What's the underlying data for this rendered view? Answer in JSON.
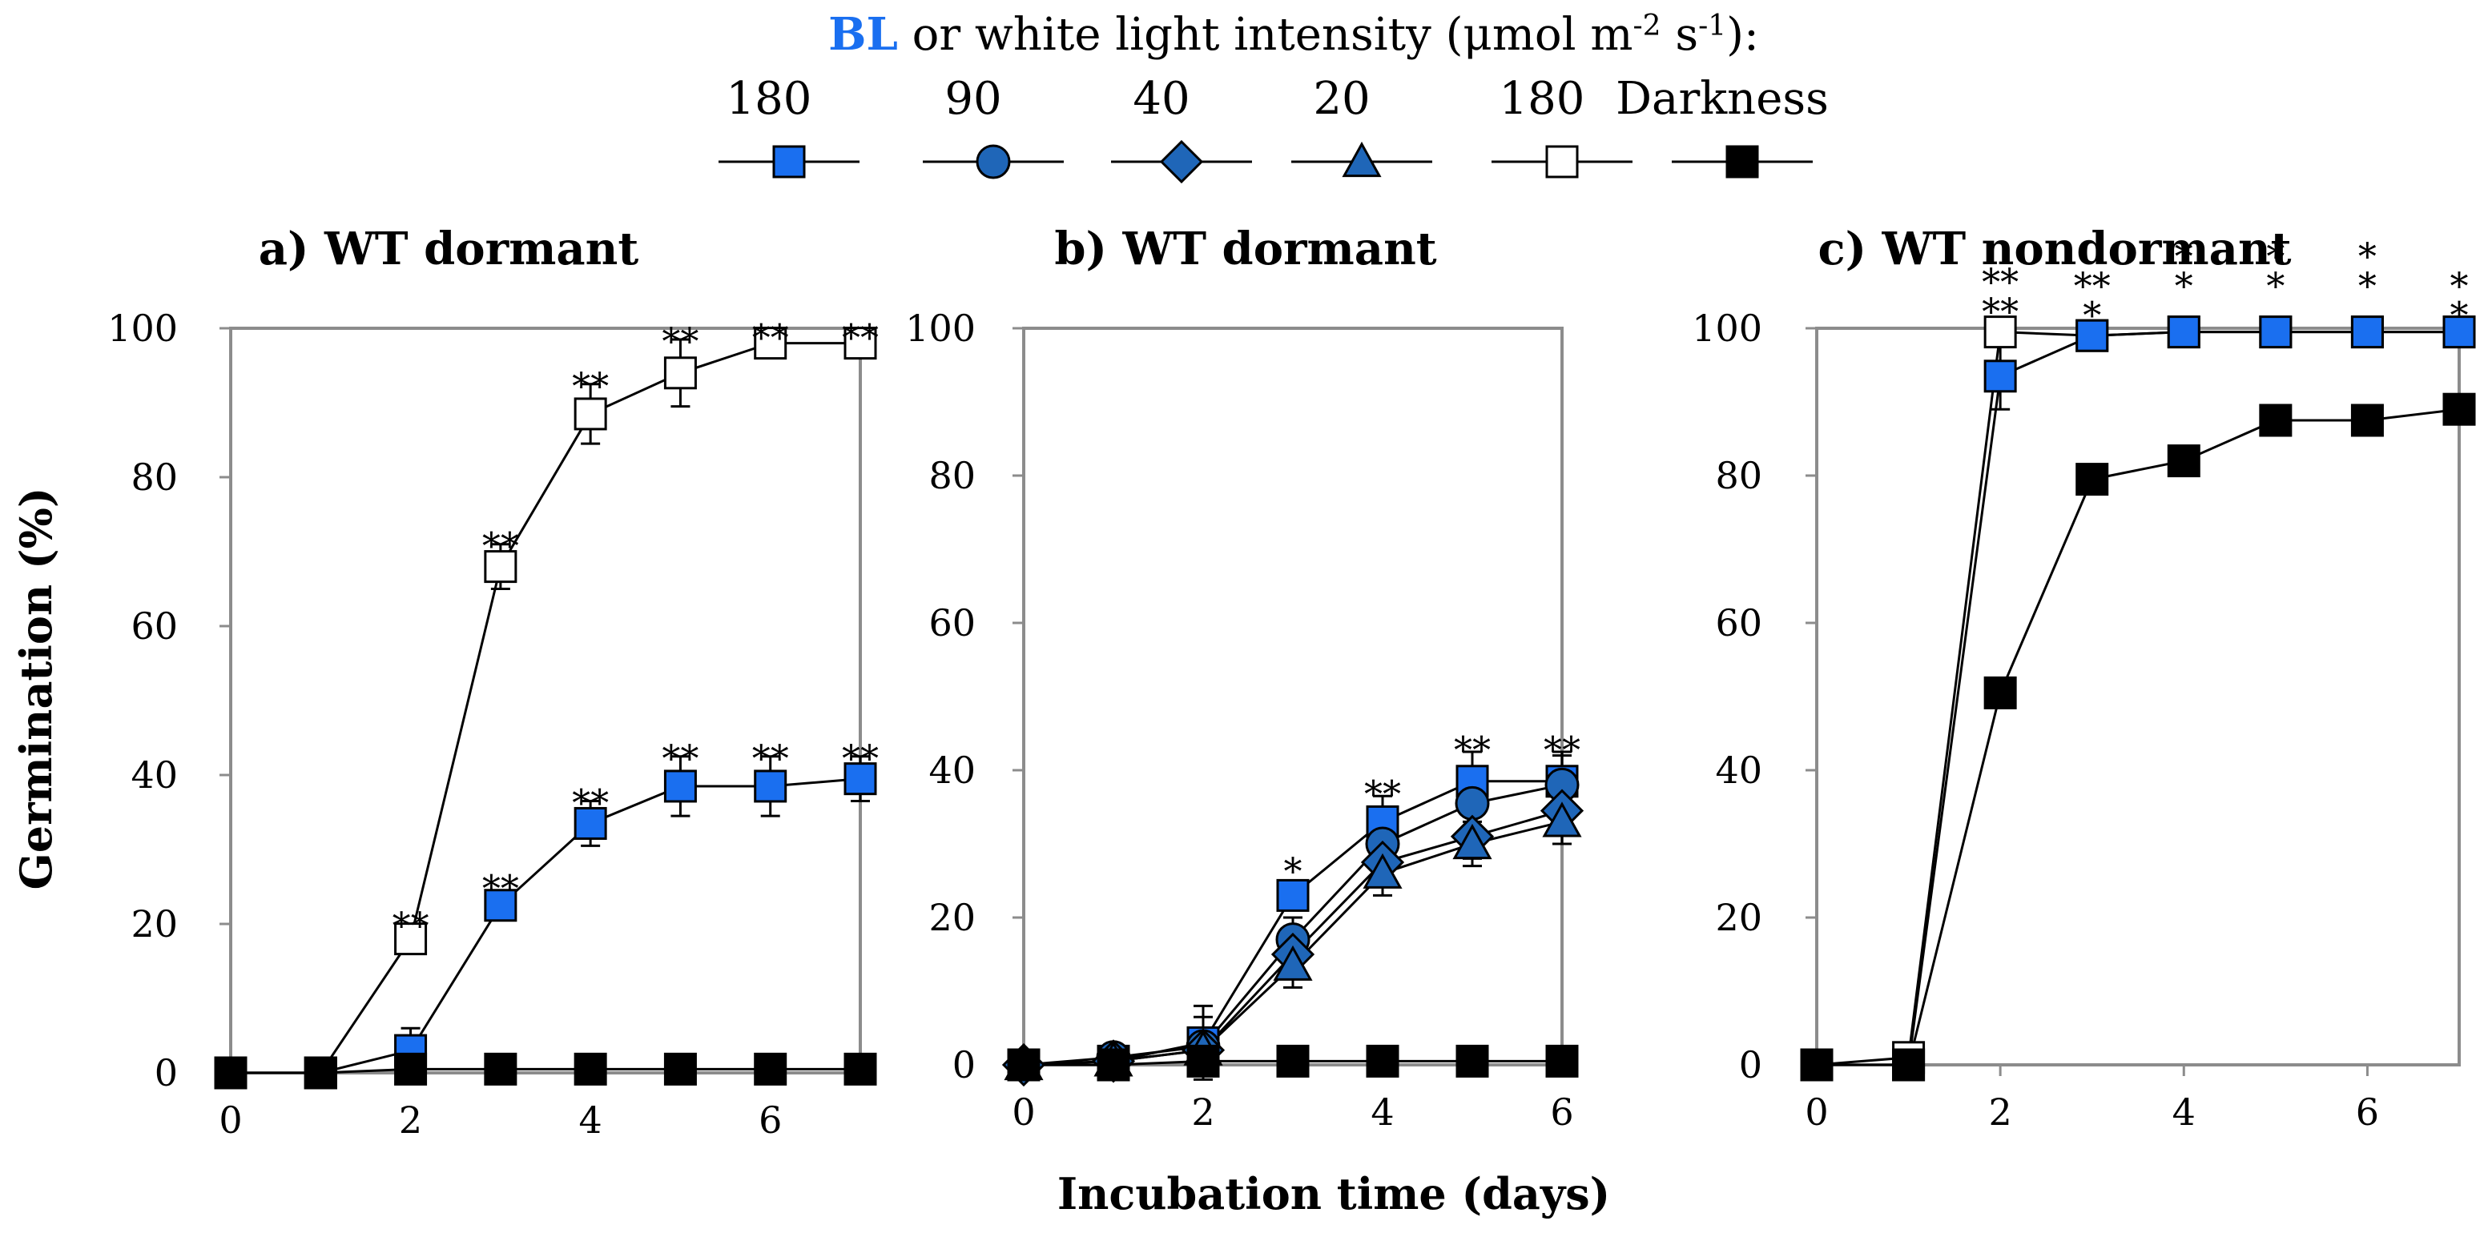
{
  "legend": {
    "title_prefix": "BL",
    "title_rest": " or white light intensity (μmol m",
    "title_exp1": "-2",
    "title_mid": " s",
    "title_exp2": "-1",
    "title_end": "):",
    "items": [
      {
        "label": "180",
        "marker": "square",
        "fill": "#1a6ff0"
      },
      {
        "label": "90",
        "marker": "circle",
        "fill": "#1f66b8"
      },
      {
        "label": "40",
        "marker": "diamond",
        "fill": "#1f66b8"
      },
      {
        "label": "20",
        "marker": "triangle",
        "fill": "#1f66b8"
      },
      {
        "label": "180",
        "marker": "square",
        "fill": "#ffffff"
      },
      {
        "label": "Darkness",
        "marker": "square",
        "fill": "#000000"
      }
    ]
  },
  "chart_data": [
    {
      "type": "line",
      "title": "a) WT dormant",
      "xlabel": "",
      "ylabel": "Germination (%)",
      "xlim": [
        0,
        7
      ],
      "ylim": [
        0,
        100
      ],
      "xticks": [
        0,
        2,
        4,
        6
      ],
      "yticks": [
        0,
        20,
        40,
        60,
        80,
        100
      ],
      "series": [
        {
          "name": "White 180",
          "marker": "square",
          "fill": "#ffffff",
          "x": [
            0,
            1,
            2,
            3,
            4,
            5,
            6,
            7
          ],
          "y": [
            0,
            0,
            18,
            68,
            88.5,
            94,
            98,
            98
          ],
          "err": [
            0,
            0,
            1.5,
            3,
            4,
            4.5,
            1,
            1
          ]
        },
        {
          "name": "BL 180",
          "marker": "square",
          "fill": "#1a6ff0",
          "x": [
            0,
            1,
            2,
            3,
            4,
            5,
            6,
            7
          ],
          "y": [
            0,
            0,
            3,
            22.5,
            33.5,
            38.5,
            38.5,
            39.5
          ],
          "err": [
            0,
            0,
            3,
            1,
            3,
            4,
            4,
            3
          ]
        },
        {
          "name": "Darkness",
          "marker": "square",
          "fill": "#000000",
          "x": [
            0,
            1,
            2,
            3,
            4,
            5,
            6,
            7
          ],
          "y": [
            0,
            0,
            0.5,
            0.5,
            0.5,
            0.5,
            0.5,
            0.5
          ],
          "err": [
            0,
            0,
            0,
            0,
            0,
            0,
            0,
            0
          ]
        }
      ],
      "annotations": [
        {
          "x": 2,
          "y": 20,
          "text": "**"
        },
        {
          "x": 3,
          "y": 25,
          "text": "**"
        },
        {
          "x": 4,
          "y": 36.5,
          "text": "**"
        },
        {
          "x": 5,
          "y": 42.5,
          "text": "**"
        },
        {
          "x": 6,
          "y": 42.5,
          "text": "**"
        },
        {
          "x": 7,
          "y": 42.5,
          "text": "**"
        },
        {
          "x": 3,
          "y": 71,
          "text": "**"
        },
        {
          "x": 4,
          "y": 92.5,
          "text": "**"
        },
        {
          "x": 5,
          "y": 98.5,
          "text": "**"
        },
        {
          "x": 6,
          "y": 99,
          "text": "**"
        },
        {
          "x": 7,
          "y": 99,
          "text": "**"
        }
      ]
    },
    {
      "type": "line",
      "title": "b) WT dormant",
      "xlabel": "Incubation time (days)",
      "ylabel": "",
      "xlim": [
        0,
        6
      ],
      "ylim": [
        0,
        100
      ],
      "xticks": [
        0,
        2,
        4,
        6
      ],
      "yticks": [
        0,
        20,
        40,
        60,
        80,
        100
      ],
      "series": [
        {
          "name": "BL 180",
          "marker": "square",
          "fill": "#1a6ff0",
          "x": [
            0,
            1,
            2,
            3,
            4,
            5,
            6
          ],
          "y": [
            0,
            0.5,
            3,
            23,
            33,
            38.5,
            38.5
          ],
          "err": [
            0,
            0,
            5,
            1,
            3.5,
            4,
            4
          ]
        },
        {
          "name": "BL 90",
          "marker": "circle",
          "fill": "#1f66b8",
          "x": [
            0,
            1,
            2,
            3,
            4,
            5,
            6
          ],
          "y": [
            0,
            1,
            2.5,
            17,
            30,
            35.5,
            38
          ],
          "err": [
            0,
            0,
            4,
            3,
            4,
            4,
            4
          ]
        },
        {
          "name": "BL 40",
          "marker": "diamond",
          "fill": "#1f66b8",
          "x": [
            0,
            1,
            2,
            3,
            4,
            5,
            6
          ],
          "y": [
            0,
            0.5,
            2,
            15,
            27.5,
            31,
            34.5
          ],
          "err": [
            0,
            0,
            3,
            3,
            3,
            3,
            3
          ]
        },
        {
          "name": "BL 20",
          "marker": "triangle",
          "fill": "#1f66b8",
          "x": [
            0,
            1,
            2,
            3,
            4,
            5,
            6
          ],
          "y": [
            0,
            0.5,
            2,
            13.5,
            26,
            30,
            33
          ],
          "err": [
            0,
            0,
            3,
            3,
            3,
            3,
            3
          ]
        },
        {
          "name": "Darkness",
          "marker": "square",
          "fill": "#000000",
          "x": [
            0,
            1,
            2,
            3,
            4,
            5,
            6
          ],
          "y": [
            0,
            0,
            0.5,
            0.5,
            0.5,
            0.5,
            0.5
          ],
          "err": [
            0,
            0,
            0,
            0,
            0,
            0,
            0
          ]
        }
      ],
      "annotations": [
        {
          "x": 3,
          "y": 26.5,
          "text": "*"
        },
        {
          "x": 4,
          "y": 37,
          "text": "**"
        },
        {
          "x": 5,
          "y": 43,
          "text": "**"
        },
        {
          "x": 6,
          "y": 43,
          "text": "**"
        }
      ]
    },
    {
      "type": "line",
      "title": "c) WT nondormant",
      "xlabel": "",
      "ylabel": "",
      "xlim": [
        0,
        7
      ],
      "ylim": [
        0,
        100
      ],
      "xticks": [
        0,
        2,
        4,
        6
      ],
      "yticks": [
        0,
        20,
        40,
        60,
        80,
        100
      ],
      "series": [
        {
          "name": "White 180",
          "marker": "square",
          "fill": "#ffffff",
          "x": [
            0,
            1,
            2,
            3,
            4,
            5,
            6,
            7
          ],
          "y": [
            0,
            1,
            99.5,
            99,
            99.5,
            99.5,
            99.5,
            99.5
          ],
          "err": [
            0,
            0,
            0.5,
            0.5,
            0.5,
            0.5,
            0.5,
            0.5
          ]
        },
        {
          "name": "BL 180",
          "marker": "square",
          "fill": "#1a6ff0",
          "x": [
            0,
            1,
            2,
            3,
            4,
            5,
            6,
            7
          ],
          "y": [
            0,
            0,
            93.5,
            99,
            99.5,
            99.5,
            99.5,
            99.5
          ],
          "err": [
            0,
            0,
            4.5,
            0.5,
            0.5,
            0.5,
            0.5,
            0.5
          ]
        },
        {
          "name": "Darkness",
          "marker": "square",
          "fill": "#000000",
          "x": [
            0,
            1,
            2,
            3,
            4,
            5,
            6,
            7
          ],
          "y": [
            0,
            0,
            50.5,
            79.5,
            82,
            87.5,
            87.5,
            89
          ],
          "err": [
            0,
            0,
            0,
            0,
            0,
            0,
            0,
            0
          ]
        }
      ],
      "annotations": [
        {
          "x": 2,
          "y": 102.5,
          "text": "**"
        },
        {
          "x": 2,
          "y": 106.5,
          "text": "**"
        },
        {
          "x": 3,
          "y": 102,
          "text": "*"
        },
        {
          "x": 3,
          "y": 106,
          "text": "**"
        },
        {
          "x": 4,
          "y": 106,
          "text": "*"
        },
        {
          "x": 4,
          "y": 110,
          "text": "*"
        },
        {
          "x": 5,
          "y": 106,
          "text": "*"
        },
        {
          "x": 5,
          "y": 110,
          "text": "*"
        },
        {
          "x": 6,
          "y": 106,
          "text": "*"
        },
        {
          "x": 6,
          "y": 110,
          "text": "*"
        },
        {
          "x": 7,
          "y": 102,
          "text": "*"
        },
        {
          "x": 7,
          "y": 106,
          "text": "*"
        }
      ]
    }
  ]
}
